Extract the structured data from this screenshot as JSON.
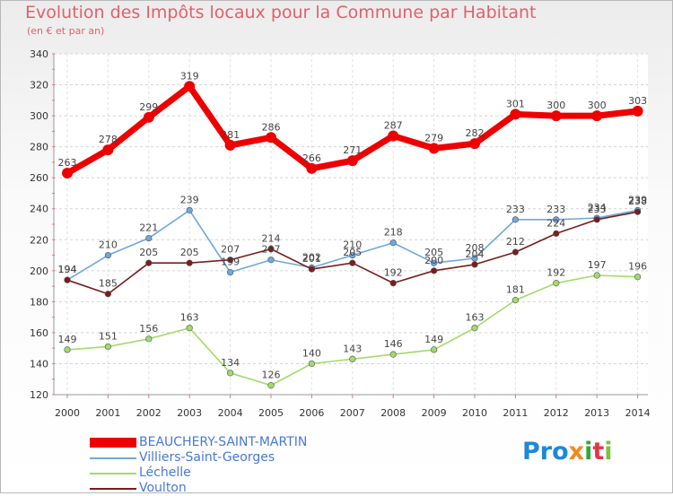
{
  "header": {
    "title": "Evolution des Impôts locaux pour la Commune par Habitant",
    "subtitle": "(en € et par an)"
  },
  "chart_data": {
    "type": "line",
    "title": "Evolution des Impôts locaux pour la Commune par Habitant",
    "subtitle": "(en € et par an)",
    "xlabel": "",
    "ylabel": "",
    "ylim": [
      120,
      340
    ],
    "yticks": [
      120,
      140,
      160,
      180,
      200,
      220,
      240,
      260,
      280,
      300,
      320,
      340
    ],
    "grid": true,
    "legend_position": "bottom-left",
    "categories": [
      "2000",
      "2001",
      "2002",
      "2003",
      "2004",
      "2005",
      "2006",
      "2007",
      "2008",
      "2009",
      "2010",
      "2011",
      "2012",
      "2013",
      "2014"
    ],
    "series": [
      {
        "name": "BEAUCHERY-SAINT-MARTIN",
        "color": "#ee0000",
        "emphasis": true,
        "values": [
          263,
          278,
          299,
          319,
          281,
          286,
          266,
          271,
          287,
          279,
          282,
          301,
          300,
          300,
          303
        ],
        "labels": [
          "263",
          "278",
          "299",
          "319",
          "281",
          "286",
          "266",
          "271",
          "287",
          "279",
          "282",
          "301",
          "300",
          "300",
          "303"
        ]
      },
      {
        "name": "Villiers-Saint-Georges",
        "color": "#6fa8dc",
        "values": [
          194,
          210,
          221,
          239,
          199,
          207,
          202,
          210,
          218,
          205,
          208,
          233,
          233,
          234,
          239
        ],
        "labels": [
          "194",
          "210",
          "221",
          "239",
          "199",
          "207",
          "202",
          "210",
          "218",
          "205",
          "208",
          "233",
          "233",
          "234",
          "239"
        ]
      },
      {
        "name": "Léchelle",
        "color": "#9fdc6a",
        "values": [
          149,
          151,
          156,
          163,
          134,
          126,
          140,
          143,
          146,
          149,
          163,
          181,
          192,
          197,
          196
        ],
        "labels": [
          "149",
          "151",
          "156",
          "163",
          "134",
          "126",
          "140",
          "143",
          "146",
          "149",
          "163",
          "181",
          "192",
          "197",
          "196"
        ]
      },
      {
        "name": "Voulton",
        "color": "#7a1d1d",
        "values": [
          194,
          185,
          205,
          205,
          207,
          214,
          201,
          205,
          192,
          200,
          204,
          212,
          224,
          233,
          238
        ],
        "labels": [
          "194",
          "185",
          "205",
          "205",
          "207",
          "214",
          "201",
          "205",
          "192",
          "200",
          "204",
          "212",
          "224",
          "233",
          "238"
        ]
      }
    ]
  },
  "logo": {
    "p1": "Pro",
    "p2": "x",
    "p3": "i",
    "p4": "t",
    "p5": "i"
  }
}
